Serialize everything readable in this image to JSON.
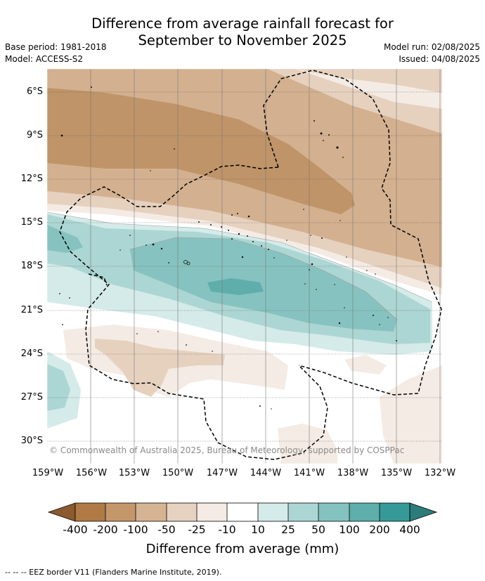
{
  "title_line1": "Difference from average rainfall forecast for",
  "title_line2": "September to November 2025",
  "base_period": "Base period: 1981-2018",
  "model": "Model: ACCESS-S2",
  "model_run": "Model run: 02/08/2025",
  "issued": "Issued: 04/08/2025",
  "copyright": "© Commonwealth of Australia 2025, Bureau of Meteorology, supported by COSPPac",
  "lat_labels": [
    "6°S",
    "9°S",
    "12°S",
    "15°S",
    "18°S",
    "21°S",
    "24°S",
    "27°S",
    "30°S"
  ],
  "lon_labels": [
    "159°W",
    "156°W",
    "153°W",
    "150°W",
    "147°W",
    "144°W",
    "141°W",
    "138°W",
    "135°W",
    "132°W"
  ],
  "colorbar": {
    "title": "Difference from average (mm)",
    "labels": [
      "-400",
      "-200",
      "-100",
      "-50",
      "-25",
      "-10",
      "10",
      "25",
      "50",
      "100",
      "200",
      "400"
    ],
    "colors": [
      "#8c5a2e",
      "#b07a45",
      "#c4976b",
      "#d5b493",
      "#e6d2c0",
      "#f4ebe4",
      "#ffffff",
      "#d4ebe9",
      "#acd6d3",
      "#83c2bf",
      "#5eaeab",
      "#359a97",
      "#2a7d7a"
    ]
  },
  "legend_note": "-- -- -- EEZ border V11 (Flanders Marine Institute, 2019).",
  "colors": {
    "dry_dark": "#bf9468",
    "dry_mid": "#d3b08f",
    "dry_light": "#e6d1bf",
    "dry_faint": "#f4ebe4",
    "wet_faint": "#d4ebe9",
    "wet_light": "#acd6d3",
    "wet_mid": "#86c3c0",
    "wet_dark": "#5faeab"
  }
}
